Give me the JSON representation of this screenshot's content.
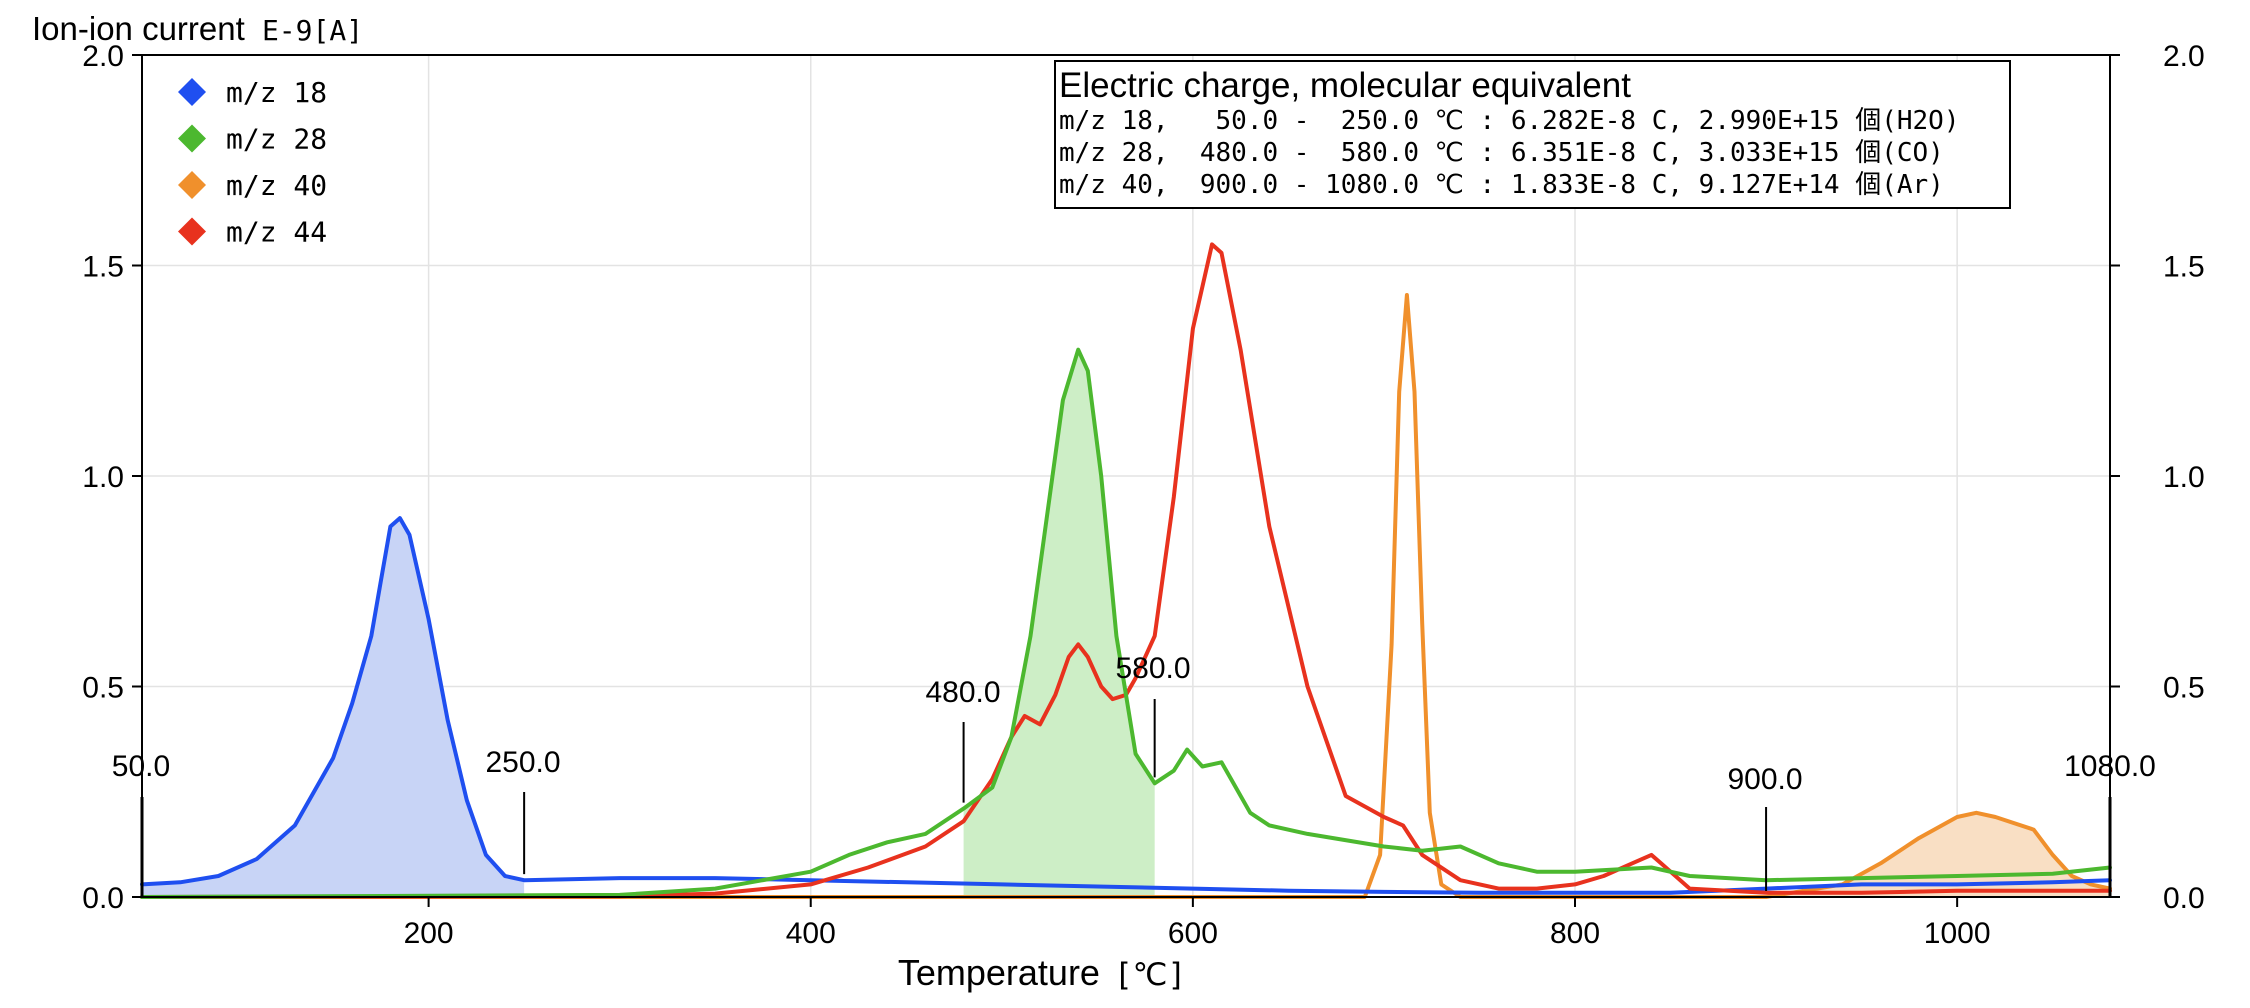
{
  "chart_data": {
    "type": "line",
    "ylabel_main": "Ion-ion current",
    "ylabel_unit": "E-9[A]",
    "xlabel_main": "Temperature",
    "xlabel_unit": "[℃]",
    "xlim": [
      50,
      1080
    ],
    "ylim": [
      0,
      2.0
    ],
    "x_ticks": [
      200,
      400,
      600,
      800,
      1000
    ],
    "y_ticks": [
      0.0,
      0.5,
      1.0,
      1.5,
      2.0
    ],
    "y_tick_labels": [
      "0.0",
      "0.5",
      "1.0",
      "1.5",
      "2.0"
    ],
    "grid": true,
    "legend": {
      "placement": "top-left",
      "entries": [
        {
          "label": "m/z 18",
          "color": "#1f4ff0"
        },
        {
          "label": "m/z 28",
          "color": "#4cb82f"
        },
        {
          "label": "m/z 40",
          "color": "#f0902c"
        },
        {
          "label": "m/z 44",
          "color": "#e8321e"
        }
      ]
    },
    "info_box": {
      "title": "Electric charge, molecular equivalent",
      "lines": [
        "m/z 18,   50.0 -  250.0 ℃ : 6.282E-8 C, 2.990E+15 個(H2O)",
        "m/z 28,  480.0 -  580.0 ℃ : 6.351E-8 C, 3.033E+15 個(CO)",
        "m/z 40,  900.0 - 1080.0 ℃ : 1.833E-8 C, 9.127E+14 個(Ar)"
      ]
    },
    "integration_ranges": [
      {
        "series": "m/z 18",
        "from": 50,
        "to": 250,
        "from_label": "50.0",
        "to_label": "250.0",
        "fill": "#c8d4f6"
      },
      {
        "series": "m/z 28",
        "from": 480,
        "to": 580,
        "from_label": "480.0",
        "to_label": "580.0",
        "fill": "#cdeec6"
      },
      {
        "series": "m/z 40",
        "from": 900,
        "to": 1080,
        "from_label": "900.0",
        "to_label": "1080.0",
        "fill": "#f9dfc4"
      }
    ],
    "series": [
      {
        "name": "m/z 18",
        "color": "#1f4ff0",
        "x": [
          50,
          70,
          90,
          110,
          130,
          150,
          160,
          170,
          175,
          180,
          185,
          190,
          200,
          210,
          220,
          230,
          240,
          250,
          300,
          350,
          400,
          450,
          500,
          550,
          600,
          650,
          700,
          750,
          800,
          850,
          900,
          950,
          1000,
          1050,
          1080
        ],
        "y": [
          0.03,
          0.035,
          0.05,
          0.09,
          0.17,
          0.33,
          0.46,
          0.62,
          0.75,
          0.88,
          0.9,
          0.86,
          0.66,
          0.42,
          0.23,
          0.1,
          0.05,
          0.04,
          0.045,
          0.045,
          0.04,
          0.035,
          0.03,
          0.025,
          0.02,
          0.015,
          0.012,
          0.01,
          0.01,
          0.01,
          0.02,
          0.03,
          0.03,
          0.035,
          0.04
        ]
      },
      {
        "name": "m/z 28",
        "color": "#4cb82f",
        "x": [
          50,
          300,
          350,
          400,
          420,
          440,
          460,
          480,
          495,
          505,
          515,
          525,
          532,
          540,
          545,
          552,
          560,
          570,
          580,
          590,
          597,
          605,
          615,
          620,
          630,
          640,
          660,
          700,
          720,
          740,
          760,
          780,
          800,
          840,
          860,
          900,
          950,
          1000,
          1050,
          1080
        ],
        "y": [
          0.0,
          0.005,
          0.02,
          0.06,
          0.1,
          0.13,
          0.15,
          0.21,
          0.26,
          0.38,
          0.62,
          0.95,
          1.18,
          1.3,
          1.25,
          1.0,
          0.62,
          0.34,
          0.27,
          0.3,
          0.35,
          0.31,
          0.32,
          0.28,
          0.2,
          0.17,
          0.15,
          0.12,
          0.11,
          0.12,
          0.08,
          0.06,
          0.06,
          0.07,
          0.05,
          0.04,
          0.045,
          0.05,
          0.055,
          0.07
        ]
      },
      {
        "name": "m/z 40",
        "color": "#f0902c",
        "x": [
          50,
          650,
          690,
          698,
          704,
          708,
          712,
          716,
          720,
          724,
          730,
          740,
          800,
          900,
          940,
          960,
          980,
          1000,
          1010,
          1020,
          1040,
          1050,
          1060,
          1070,
          1080
        ],
        "y": [
          0.0,
          0.0,
          0.0,
          0.1,
          0.6,
          1.2,
          1.43,
          1.2,
          0.65,
          0.2,
          0.03,
          0.0,
          0.0,
          0.0,
          0.03,
          0.08,
          0.14,
          0.19,
          0.2,
          0.19,
          0.16,
          0.1,
          0.05,
          0.03,
          0.02
        ]
      },
      {
        "name": "m/z 44",
        "color": "#e8321e",
        "x": [
          50,
          300,
          350,
          400,
          430,
          460,
          480,
          495,
          505,
          512,
          520,
          528,
          535,
          540,
          545,
          552,
          558,
          565,
          570,
          580,
          590,
          600,
          610,
          615,
          625,
          640,
          660,
          680,
          700,
          710,
          720,
          740,
          760,
          780,
          800,
          815,
          830,
          840,
          845,
          860,
          900,
          950,
          1000,
          1050,
          1080
        ],
        "y": [
          0.0,
          0.002,
          0.008,
          0.03,
          0.07,
          0.12,
          0.18,
          0.28,
          0.38,
          0.43,
          0.41,
          0.48,
          0.57,
          0.6,
          0.57,
          0.5,
          0.47,
          0.48,
          0.52,
          0.62,
          0.95,
          1.35,
          1.55,
          1.53,
          1.3,
          0.88,
          0.5,
          0.24,
          0.19,
          0.17,
          0.1,
          0.04,
          0.02,
          0.02,
          0.03,
          0.05,
          0.08,
          0.1,
          0.08,
          0.02,
          0.01,
          0.01,
          0.015,
          0.015,
          0.015
        ]
      }
    ]
  }
}
